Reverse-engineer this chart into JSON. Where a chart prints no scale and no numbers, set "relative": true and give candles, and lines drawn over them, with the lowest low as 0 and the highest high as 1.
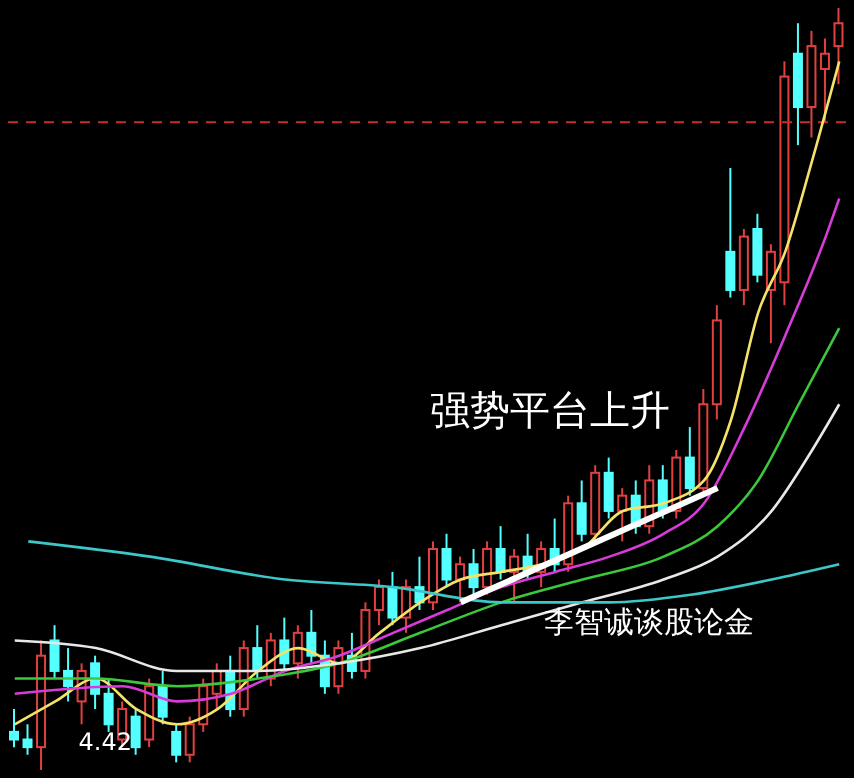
{
  "chart_data": {
    "type": "candlestick",
    "relative": true,
    "categories": [
      null,
      null,
      null,
      null,
      null,
      null,
      null,
      null,
      null,
      null,
      null,
      null,
      null,
      null,
      null,
      null,
      null,
      null,
      null,
      null,
      null,
      null,
      null,
      null,
      null,
      null,
      null,
      null,
      null,
      null,
      null,
      null,
      null,
      null,
      null,
      null,
      null,
      null,
      null,
      null,
      null,
      null,
      null,
      null,
      null,
      null,
      null,
      null,
      null,
      null,
      null,
      null,
      null,
      null,
      null,
      null,
      null,
      null,
      null,
      null,
      null,
      null
    ],
    "ohlc": [
      [
        0.05,
        0.08,
        0.03,
        0.04
      ],
      [
        0.04,
        0.06,
        0.02,
        0.03
      ],
      [
        0.03,
        0.17,
        0,
        0.15
      ],
      [
        0.17,
        0.19,
        0.12,
        0.13
      ],
      [
        0.13,
        0.16,
        0.09,
        0.11
      ],
      [
        0.09,
        0.14,
        0.06,
        0.13
      ],
      [
        0.14,
        0.15,
        0.08,
        0.1
      ],
      [
        0.1,
        0.12,
        0.05,
        0.06
      ],
      [
        0.04,
        0.09,
        0.03,
        0.08
      ],
      [
        0.07,
        0.08,
        0.02,
        0.03
      ],
      [
        0.04,
        0.12,
        0.03,
        0.11
      ],
      [
        0.11,
        0.13,
        0.06,
        0.07
      ],
      [
        0.05,
        0.06,
        0.01,
        0.02
      ],
      [
        0.02,
        0.07,
        0.01,
        0.06
      ],
      [
        0.06,
        0.12,
        0.05,
        0.11
      ],
      [
        0.1,
        0.14,
        0.08,
        0.13
      ],
      [
        0.13,
        0.15,
        0.07,
        0.08
      ],
      [
        0.08,
        0.17,
        0.07,
        0.16
      ],
      [
        0.16,
        0.19,
        0.12,
        0.13
      ],
      [
        0.12,
        0.18,
        0.11,
        0.17
      ],
      [
        0.17,
        0.2,
        0.13,
        0.14
      ],
      [
        0.14,
        0.19,
        0.12,
        0.18
      ],
      [
        0.18,
        0.21,
        0.14,
        0.15
      ],
      [
        0.15,
        0.17,
        0.1,
        0.11
      ],
      [
        0.11,
        0.17,
        0.1,
        0.16
      ],
      [
        0.15,
        0.18,
        0.12,
        0.13
      ],
      [
        0.13,
        0.22,
        0.12,
        0.21
      ],
      [
        0.21,
        0.25,
        0.19,
        0.24
      ],
      [
        0.24,
        0.26,
        0.19,
        0.2
      ],
      [
        0.2,
        0.25,
        0.18,
        0.24
      ],
      [
        0.24,
        0.28,
        0.21,
        0.22
      ],
      [
        0.22,
        0.3,
        0.21,
        0.29
      ],
      [
        0.29,
        0.31,
        0.24,
        0.25
      ],
      [
        0.25,
        0.28,
        0.22,
        0.27
      ],
      [
        0.27,
        0.29,
        0.23,
        0.24
      ],
      [
        0.24,
        0.3,
        0.23,
        0.29
      ],
      [
        0.29,
        0.32,
        0.25,
        0.26
      ],
      [
        0.26,
        0.29,
        0.22,
        0.28
      ],
      [
        0.28,
        0.31,
        0.25,
        0.26
      ],
      [
        0.26,
        0.3,
        0.24,
        0.29
      ],
      [
        0.29,
        0.33,
        0.26,
        0.27
      ],
      [
        0.27,
        0.36,
        0.26,
        0.35
      ],
      [
        0.35,
        0.38,
        0.3,
        0.31
      ],
      [
        0.31,
        0.4,
        0.3,
        0.39
      ],
      [
        0.39,
        0.41,
        0.33,
        0.34
      ],
      [
        0.34,
        0.37,
        0.3,
        0.36
      ],
      [
        0.36,
        0.38,
        0.31,
        0.32
      ],
      [
        0.32,
        0.4,
        0.31,
        0.38
      ],
      [
        0.38,
        0.4,
        0.33,
        0.34
      ],
      [
        0.34,
        0.42,
        0.33,
        0.41
      ],
      [
        0.41,
        0.45,
        0.36,
        0.37
      ],
      [
        0.37,
        0.5,
        0.36,
        0.48
      ],
      [
        0.48,
        0.61,
        0.46,
        0.59
      ],
      [
        0.68,
        0.79,
        0.62,
        0.63
      ],
      [
        0.63,
        0.71,
        0.61,
        0.7
      ],
      [
        0.71,
        0.73,
        0.64,
        0.65
      ],
      [
        0.63,
        0.69,
        0.56,
        0.68
      ],
      [
        0.64,
        0.93,
        0.61,
        0.91
      ],
      [
        0.94,
        0.98,
        0.82,
        0.87
      ],
      [
        0.87,
        0.97,
        0.83,
        0.95
      ],
      [
        0.92,
        0.96,
        0.85,
        0.94
      ],
      [
        0.95,
        1,
        0.9,
        0.98
      ]
    ],
    "series": [
      {
        "type": "line",
        "color": "#f5e26a",
        "values": [
          0.06,
          null,
          null,
          0.09,
          null,
          null,
          0.12,
          null,
          null,
          0.08,
          null,
          null,
          0.06,
          null,
          null,
          0.08,
          null,
          null,
          0.13,
          null,
          null,
          0.16,
          null,
          null,
          0.14,
          null,
          null,
          0.18,
          null,
          null,
          0.22,
          null,
          null,
          0.25,
          null,
          null,
          0.26,
          null,
          null,
          0.27,
          null,
          null,
          0.29,
          null,
          null,
          0.34,
          null,
          null,
          0.35,
          null,
          null,
          0.38,
          null,
          0.46,
          null,
          0.6,
          null,
          0.68,
          null,
          0.8,
          null,
          0.93
        ]
      },
      {
        "type": "line",
        "color": "#d83cd8",
        "values": [
          0.1,
          null,
          null,
          null,
          null,
          null,
          null,
          null,
          0.11,
          null,
          null,
          null,
          0.09,
          null,
          null,
          null,
          0.1,
          null,
          null,
          null,
          0.13,
          null,
          null,
          null,
          0.15,
          null,
          null,
          null,
          0.18,
          null,
          null,
          null,
          0.21,
          null,
          null,
          null,
          0.24,
          null,
          null,
          null,
          0.26,
          null,
          null,
          null,
          0.28,
          null,
          null,
          null,
          0.31,
          null,
          null,
          0.35,
          null,
          null,
          0.45,
          null,
          null,
          0.57,
          null,
          null,
          0.7,
          0.75
        ]
      },
      {
        "type": "line",
        "color": "#3cc83c",
        "values": [
          0.12,
          null,
          null,
          null,
          null,
          null,
          0.12,
          null,
          null,
          null,
          null,
          null,
          0.11,
          null,
          null,
          null,
          null,
          null,
          0.12,
          null,
          null,
          null,
          null,
          null,
          0.14,
          null,
          null,
          null,
          null,
          null,
          0.18,
          null,
          null,
          null,
          null,
          null,
          0.22,
          null,
          null,
          null,
          null,
          null,
          0.25,
          null,
          null,
          null,
          null,
          null,
          0.28,
          null,
          null,
          null,
          0.32,
          null,
          null,
          0.38,
          null,
          null,
          0.48,
          null,
          null,
          0.58
        ]
      },
      {
        "type": "line",
        "color": "#e8e8e8",
        "values": [
          0.17,
          null,
          null,
          null,
          null,
          null,
          0.16,
          null,
          null,
          null,
          null,
          null,
          0.13,
          null,
          null,
          null,
          null,
          null,
          0.13,
          null,
          null,
          null,
          null,
          null,
          0.14,
          null,
          null,
          null,
          null,
          null,
          0.16,
          null,
          null,
          null,
          null,
          null,
          0.19,
          null,
          null,
          null,
          null,
          null,
          0.22,
          null,
          null,
          null,
          null,
          null,
          0.25,
          null,
          null,
          null,
          0.28,
          null,
          null,
          null,
          0.34,
          null,
          null,
          0.42,
          null,
          0.48
        ]
      },
      {
        "type": "line",
        "color": "#3cc8c8",
        "values": [
          null,
          0.3,
          null,
          null,
          null,
          null,
          null,
          null,
          null,
          null,
          0.28,
          null,
          null,
          null,
          null,
          null,
          null,
          null,
          null,
          null,
          0.25,
          null,
          null,
          null,
          null,
          null,
          null,
          null,
          0.24,
          null,
          null,
          null,
          null,
          null,
          null,
          null,
          0.22,
          null,
          null,
          null,
          null,
          null,
          null,
          null,
          0.22,
          null,
          null,
          null,
          null,
          null,
          0.23,
          null,
          null,
          null,
          null,
          null,
          0.25,
          null,
          null,
          null,
          null,
          0.27
        ]
      },
      {
        "type": "line",
        "color": "#ffffff",
        "values": [
          null,
          null,
          null,
          null,
          null,
          null,
          null,
          null,
          null,
          null,
          null,
          null,
          null,
          null,
          null,
          null,
          null,
          null,
          null,
          null,
          null,
          null,
          null,
          null,
          null,
          null,
          null,
          null,
          null,
          null,
          null,
          null,
          null,
          0.22,
          null,
          null,
          null,
          null,
          null,
          null,
          null,
          null,
          null,
          null,
          null,
          null,
          null,
          null,
          null,
          null,
          null,
          null,
          0.37,
          null,
          null,
          null,
          null,
          null,
          null,
          null,
          null,
          null
        ]
      }
    ],
    "ref_lines": [
      {
        "axis": "y",
        "value": 0.85,
        "color": "#c03030",
        "line_style": "dashed"
      }
    ],
    "annotations": [
      "强势平台上升",
      "李智诚谈股论金",
      "4.42"
    ]
  }
}
